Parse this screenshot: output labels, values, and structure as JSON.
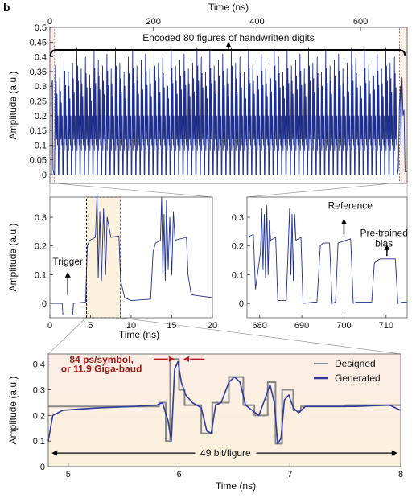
{
  "figure_label": "b",
  "chart_data": [
    {
      "type": "line",
      "id": "overview",
      "x_top_label": "Time (ns)",
      "ylabel": "Amplitude (a.u.)",
      "xlim": [
        0,
        690
      ],
      "ylim": [
        -0.03,
        0.5
      ],
      "x_ticks": [
        0,
        200,
        400,
        600
      ],
      "y_ticks": [
        0,
        0.05,
        0.1,
        0.15,
        0.2,
        0.25,
        0.3,
        0.35,
        0.4,
        0.45,
        0.5
      ],
      "y_tick_labels": [
        "0",
        "0.05",
        "0.1",
        "0.15",
        "0.2",
        "0.25",
        "0.3",
        "0.35",
        "0.4",
        "0.45",
        "0.5"
      ],
      "annotation": "Encoded 80 figures of handwritten digits",
      "highlight_start": [
        0,
        9
      ],
      "highlight_end": [
        675,
        690
      ],
      "series": [
        {
          "color": "#1e2f8f",
          "n_pulses": 80,
          "pulse_peaks": [
            0.37,
            0.33,
            0.41,
            0.35,
            0.38,
            0.43,
            0.36,
            0.4,
            0.34,
            0.42,
            0.39,
            0.37,
            0.41,
            0.36,
            0.43,
            0.38,
            0.35,
            0.4,
            0.42,
            0.37,
            0.39,
            0.41,
            0.36,
            0.43,
            0.38,
            0.4,
            0.35,
            0.42,
            0.37,
            0.39,
            0.41,
            0.36,
            0.38,
            0.43,
            0.4,
            0.35,
            0.42,
            0.37,
            0.39,
            0.41,
            0.36,
            0.43,
            0.38,
            0.4,
            0.35,
            0.42,
            0.37,
            0.39,
            0.41,
            0.36,
            0.38,
            0.43,
            0.4,
            0.35,
            0.42,
            0.37,
            0.39,
            0.41,
            0.36,
            0.43,
            0.38,
            0.4,
            0.35,
            0.42,
            0.37,
            0.39,
            0.41,
            0.36,
            0.38,
            0.43,
            0.4,
            0.35,
            0.42,
            0.37,
            0.39,
            0.41,
            0.36,
            0.43,
            0.38,
            0.4
          ]
        }
      ]
    },
    {
      "type": "line",
      "id": "zoom-start",
      "xlabel": "Time (ns)",
      "ylabel": "Amplitude (a.u.)",
      "xlim": [
        0,
        20
      ],
      "ylim": [
        -0.05,
        0.37
      ],
      "x_ticks": [
        0,
        5,
        10,
        15,
        20
      ],
      "y_ticks": [
        0,
        0.1,
        0.2,
        0.3
      ],
      "y_tick_labels": [
        "0",
        "0.1",
        "0.2",
        "0.3"
      ],
      "annotation": "Trigger",
      "highlight": [
        4.5,
        8.7
      ],
      "series": [
        {
          "color": "#1e2f8f",
          "x": [
            0,
            1.5,
            1.6,
            2.8,
            2.9,
            4.4,
            4.6,
            4.9,
            5.6,
            5.8,
            5.95,
            6.15,
            6.35,
            6.6,
            6.85,
            7.05,
            7.5,
            8.5,
            8.7,
            9.2,
            10,
            12.4,
            12.7,
            13.0,
            13.6,
            13.75,
            13.9,
            14.05,
            14.2,
            14.35,
            14.55,
            14.75,
            15.0,
            15.2,
            15.4,
            16.8,
            17.0,
            17.4,
            20
          ],
          "y": [
            0,
            0,
            -0.04,
            -0.04,
            0,
            0.005,
            0.2,
            0.22,
            0.23,
            0.38,
            0.09,
            0.32,
            0.08,
            0.33,
            0.1,
            0.3,
            0.23,
            0.235,
            0.08,
            0.02,
            0.01,
            0.015,
            0.18,
            0.21,
            0.22,
            0.37,
            0.1,
            0.31,
            0.08,
            0.36,
            0.12,
            0.3,
            0.1,
            0.32,
            0.22,
            0.23,
            0.1,
            0.03,
            0.02
          ]
        }
      ]
    },
    {
      "type": "line",
      "id": "zoom-end",
      "xlim": [
        677,
        715
      ],
      "ylim": [
        -0.05,
        0.37
      ],
      "x_ticks": [
        680,
        690,
        700,
        710
      ],
      "y_ticks": [
        0,
        0.1,
        0.2,
        0.3
      ],
      "y_tick_labels": [
        "0",
        "0.1",
        "0.2",
        "0.3"
      ],
      "annotations": [
        {
          "text": "Reference",
          "x": 701.5,
          "y": 0.33
        },
        {
          "text": "Pre-trained",
          "x": 709.5,
          "y": 0.24
        },
        {
          "text": "bias",
          "x": 709.5,
          "y": 0.215
        }
      ],
      "series": [
        {
          "color": "#1e2f8f",
          "x": [
            677,
            678.5,
            679,
            680.2,
            680.5,
            680.8,
            681.1,
            681.4,
            681.7,
            682.0,
            682.3,
            682.6,
            683.8,
            684.3,
            686.3,
            686.8,
            687.1,
            687.4,
            687.7,
            688.0,
            688.3,
            688.6,
            689.8,
            690.3,
            693.0,
            693.6,
            694.4,
            695.0,
            696.6,
            697.2,
            698.0,
            698.6,
            701.6,
            702.2,
            703.0,
            703.6,
            706.6,
            707.2,
            708.0,
            708.6,
            712.2,
            712.8,
            714,
            715
          ],
          "y": [
            0.23,
            0.24,
            0.05,
            0.18,
            0.33,
            0.12,
            0.31,
            0.09,
            0.34,
            0.1,
            0.29,
            0.22,
            0.23,
            0.01,
            0.01,
            0.2,
            0.33,
            0.1,
            0.31,
            0.08,
            0.31,
            0.22,
            0.23,
            0.0,
            0.005,
            0.005,
            0.2,
            0.21,
            0.21,
            0.0,
            0.005,
            0.21,
            0.225,
            0.0,
            0.005,
            0.005,
            0.005,
            0.14,
            0.15,
            0.155,
            0.155,
            0.0,
            0.005,
            0.005
          ]
        }
      ]
    },
    {
      "type": "line",
      "id": "zoom-bits",
      "xlabel": "Time (ns)",
      "ylabel": "Amplitude (a.u.)",
      "xlim": [
        4.82,
        8.0
      ],
      "ylim": [
        0.0,
        0.44
      ],
      "x_ticks": [
        5,
        6,
        7,
        8
      ],
      "y_ticks": [
        0,
        0.1,
        0.2,
        0.3,
        0.4
      ],
      "y_tick_labels": [
        "0",
        "0.1",
        "0.2",
        "0.3",
        "0.4"
      ],
      "annotations": [
        {
          "text": "84 ps/symbol,",
          "x": 5.3,
          "y": 0.405
        },
        {
          "text": "or 11.9 Giga-baud",
          "x": 5.3,
          "y": 0.37
        },
        {
          "text": "49 bit/figure",
          "x": 6.42,
          "y": 0.035
        }
      ],
      "legend": {
        "position": "top-right",
        "entries": [
          "Designed",
          "Generated"
        ]
      },
      "series": [
        {
          "name": "Designed",
          "color": "#888888",
          "x": [
            4.82,
            5.82,
            5.82,
            5.88,
            5.88,
            5.92,
            5.92,
            6.0,
            6.0,
            6.05,
            6.05,
            6.2,
            6.2,
            6.3,
            6.3,
            6.45,
            6.45,
            6.58,
            6.58,
            6.68,
            6.68,
            6.8,
            6.8,
            6.87,
            6.87,
            6.93,
            6.93,
            7.03,
            7.03,
            7.1,
            7.1,
            7.5,
            7.5,
            8.0
          ],
          "y": [
            0.235,
            0.235,
            0.25,
            0.25,
            0.1,
            0.1,
            0.42,
            0.42,
            0.3,
            0.3,
            0.24,
            0.24,
            0.13,
            0.13,
            0.25,
            0.25,
            0.35,
            0.35,
            0.24,
            0.24,
            0.2,
            0.2,
            0.33,
            0.33,
            0.09,
            0.09,
            0.3,
            0.3,
            0.22,
            0.22,
            0.235,
            0.235,
            0.24,
            0.24
          ]
        },
        {
          "name": "Generated",
          "color": "#2e3a9e",
          "x": [
            4.82,
            4.86,
            4.95,
            5.1,
            5.3,
            5.6,
            5.8,
            5.85,
            5.9,
            5.93,
            5.96,
            5.99,
            6.02,
            6.06,
            6.12,
            6.2,
            6.25,
            6.29,
            6.33,
            6.38,
            6.45,
            6.5,
            6.55,
            6.6,
            6.66,
            6.72,
            6.78,
            6.82,
            6.86,
            6.89,
            6.92,
            6.95,
            6.99,
            7.03,
            7.08,
            7.14,
            7.3,
            7.6,
            7.9,
            8.0
          ],
          "y": [
            0.1,
            0.2,
            0.22,
            0.225,
            0.23,
            0.235,
            0.24,
            0.25,
            0.18,
            0.1,
            0.38,
            0.41,
            0.33,
            0.28,
            0.25,
            0.23,
            0.14,
            0.13,
            0.24,
            0.25,
            0.33,
            0.35,
            0.33,
            0.24,
            0.22,
            0.2,
            0.27,
            0.32,
            0.25,
            0.09,
            0.11,
            0.26,
            0.28,
            0.23,
            0.21,
            0.235,
            0.235,
            0.235,
            0.24,
            0.22
          ]
        }
      ]
    }
  ]
}
